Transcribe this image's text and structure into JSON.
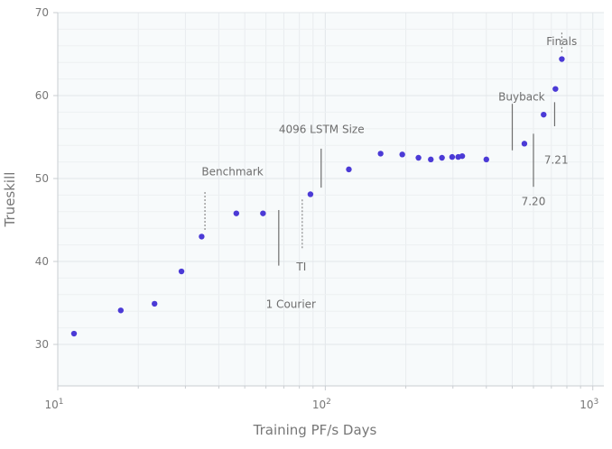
{
  "chart_data": {
    "type": "scatter",
    "xlabel": "Training PF/s Days",
    "ylabel": "Trueskill",
    "x_scale": "log",
    "xlim": [
      10,
      1100
    ],
    "ylim": [
      25,
      70
    ],
    "grid": true,
    "x_ticks": [
      {
        "value": 10,
        "base": "10",
        "exp": "1"
      },
      {
        "value": 100,
        "base": "10",
        "exp": "2"
      },
      {
        "value": 1000,
        "base": "10",
        "exp": "3"
      }
    ],
    "y_ticks": [
      30,
      40,
      50,
      60,
      70
    ],
    "point_color": "#4b3ad6",
    "points": [
      {
        "x": 11.5,
        "y": 31.3
      },
      {
        "x": 17.2,
        "y": 34.1
      },
      {
        "x": 23.0,
        "y": 34.9
      },
      {
        "x": 29.0,
        "y": 38.8
      },
      {
        "x": 34.5,
        "y": 43.0
      },
      {
        "x": 46.5,
        "y": 45.8
      },
      {
        "x": 58.5,
        "y": 45.8
      },
      {
        "x": 88.0,
        "y": 48.1
      },
      {
        "x": 122.5,
        "y": 51.1
      },
      {
        "x": 161.0,
        "y": 53.0
      },
      {
        "x": 194.0,
        "y": 52.9
      },
      {
        "x": 223.0,
        "y": 52.5
      },
      {
        "x": 248.0,
        "y": 52.3
      },
      {
        "x": 273.0,
        "y": 52.5
      },
      {
        "x": 298.0,
        "y": 52.6
      },
      {
        "x": 314.0,
        "y": 52.6
      },
      {
        "x": 325.0,
        "y": 52.7
      },
      {
        "x": 400.0,
        "y": 52.3
      },
      {
        "x": 555.0,
        "y": 54.2
      },
      {
        "x": 655.0,
        "y": 57.7
      },
      {
        "x": 725.0,
        "y": 60.8
      },
      {
        "x": 766.0,
        "y": 64.4
      }
    ],
    "annotations": [
      {
        "text": "Benchmark",
        "x": 34.5,
        "y": 50.4,
        "anchor": "start",
        "line_x": 35.5,
        "line_y": [
          43.8,
          48.5
        ],
        "dotted": true
      },
      {
        "text": "1 Courier",
        "x": 60.0,
        "y": 34.4,
        "anchor": "start",
        "line_x": 67.0,
        "line_y": [
          39.5,
          46.2
        ],
        "dotted": false
      },
      {
        "text": "TI",
        "x": 78.0,
        "y": 38.9,
        "anchor": "start",
        "line_x": 82.0,
        "line_y": [
          41.6,
          47.6
        ],
        "dotted": true
      },
      {
        "text": "4096 LSTM Size",
        "x": 67.0,
        "y": 55.5,
        "anchor": "start",
        "line_x": 96.5,
        "line_y": [
          48.9,
          53.6
        ],
        "dotted": false
      },
      {
        "text": "Buyback",
        "x": 542.0,
        "y": 59.4,
        "anchor": "middle",
        "line_x": 500.0,
        "line_y": [
          53.4,
          59.0
        ],
        "dotted": false
      },
      {
        "text": "7.20",
        "x": 600.0,
        "y": 46.8,
        "anchor": "middle",
        "line_x": 600.0,
        "line_y": [
          49.0,
          55.4
        ],
        "dotted": false
      },
      {
        "text": "7.21",
        "x": 730.0,
        "y": 51.8,
        "anchor": "middle",
        "line_x": 720.0,
        "line_y": [
          56.3,
          59.2
        ],
        "dotted": false
      },
      {
        "text": "Finals",
        "x": 765.0,
        "y": 66.1,
        "anchor": "middle",
        "line_x": 766.0,
        "line_y": [
          65.2,
          67.7
        ],
        "dotted": true
      }
    ]
  }
}
